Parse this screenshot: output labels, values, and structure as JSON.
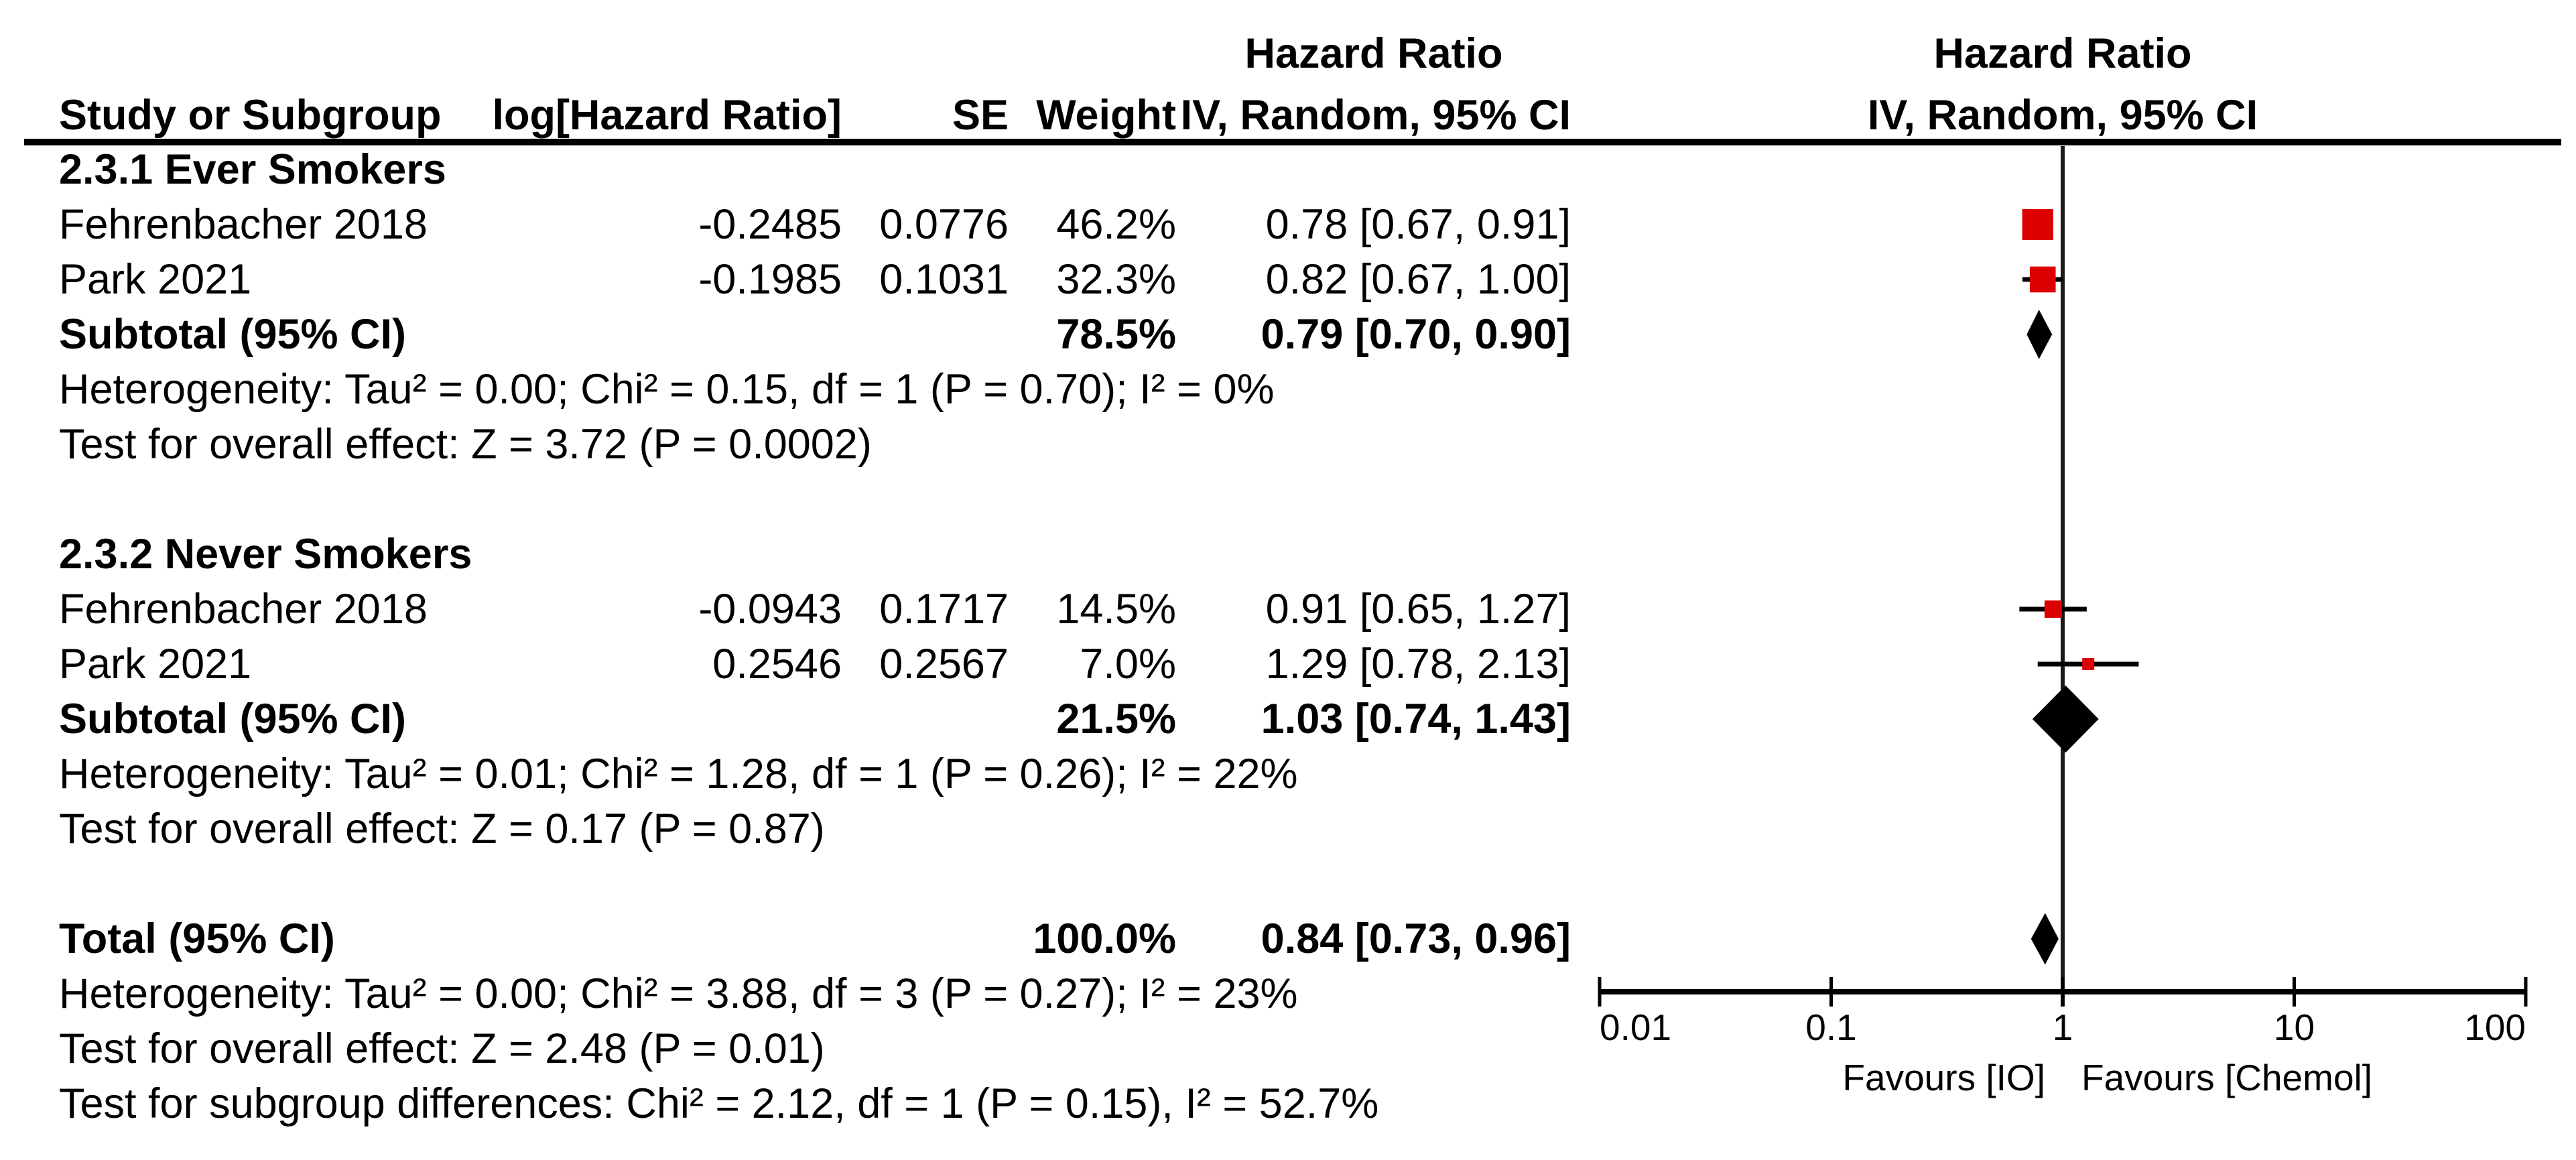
{
  "colors": {
    "marker_red": "#DD0000",
    "ink": "#000000",
    "line": "#1a1a1a"
  },
  "table": {
    "col_headers": {
      "study": "Study or Subgroup",
      "log_hr": "log[Hazard Ratio]",
      "se": "SE",
      "weight": "Weight",
      "effect_line1": "Hazard Ratio",
      "effect_line2": "IV, Random, 95% CI"
    },
    "plot_headers": {
      "line1": "Hazard Ratio",
      "line2": "IV, Random, 95% CI"
    }
  },
  "chart_data": {
    "type": "scatter",
    "subtype": "forest-plot",
    "title": "Hazard Ratio, IV, Random, 95% CI",
    "x_scale": "log10",
    "xlim": [
      0.01,
      100
    ],
    "x_ticks": [
      0.01,
      0.1,
      1,
      10,
      100
    ],
    "x_tick_labels": [
      "0.01",
      "0.1",
      "1",
      "10",
      "100"
    ],
    "null_line": 1,
    "favours_left": "Favours [IO]",
    "favours_right": "Favours [Chemol]",
    "rows": [
      {
        "kind": "subgroup",
        "label": "2.3.1 Ever Smokers"
      },
      {
        "kind": "study",
        "label": "Fehrenbacher 2018",
        "log_hr": "-0.2485",
        "se": "0.0776",
        "weight": "46.2%",
        "weight_pct": 46.2,
        "ci_text": "0.78 [0.67, 0.91]",
        "hr": 0.78,
        "lo": 0.67,
        "hi": 0.91
      },
      {
        "kind": "study",
        "label": "Park 2021",
        "log_hr": "-0.1985",
        "se": "0.1031",
        "weight": "32.3%",
        "weight_pct": 32.3,
        "ci_text": "0.82 [0.67, 1.00]",
        "hr": 0.82,
        "lo": 0.67,
        "hi": 1.0
      },
      {
        "kind": "subtotal",
        "label": "Subtotal (95% CI)",
        "weight": "78.5%",
        "ci_text": "0.79 [0.70, 0.90]",
        "hr": 0.79,
        "lo": 0.7,
        "hi": 0.9
      },
      {
        "kind": "note",
        "label": "Heterogeneity: Tau² = 0.00; Chi² = 0.15, df = 1 (P = 0.70); I² = 0%"
      },
      {
        "kind": "note",
        "label": "Test for overall effect: Z = 3.72 (P = 0.0002)"
      },
      {
        "kind": "blank"
      },
      {
        "kind": "subgroup",
        "label": "2.3.2 Never Smokers"
      },
      {
        "kind": "study",
        "label": "Fehrenbacher 2018",
        "log_hr": "-0.0943",
        "se": "0.1717",
        "weight": "14.5%",
        "weight_pct": 14.5,
        "ci_text": "0.91 [0.65, 1.27]",
        "hr": 0.91,
        "lo": 0.65,
        "hi": 1.27
      },
      {
        "kind": "study",
        "label": "Park 2021",
        "log_hr": "0.2546",
        "se": "0.2567",
        "weight": "7.0%",
        "weight_pct": 7.0,
        "ci_text": "1.29 [0.78, 2.13]",
        "hr": 1.29,
        "lo": 0.78,
        "hi": 2.13
      },
      {
        "kind": "subtotal",
        "label": "Subtotal (95% CI)",
        "weight": "21.5%",
        "ci_text": "1.03 [0.74, 1.43]",
        "hr": 1.03,
        "lo": 0.74,
        "hi": 1.43
      },
      {
        "kind": "note",
        "label": "Heterogeneity: Tau² = 0.01; Chi² = 1.28, df = 1 (P = 0.26); I² = 22%"
      },
      {
        "kind": "note",
        "label": "Test for overall effect: Z = 0.17 (P = 0.87)"
      },
      {
        "kind": "blank"
      },
      {
        "kind": "total",
        "label": "Total (95% CI)",
        "weight": "100.0%",
        "ci_text": "0.84 [0.73, 0.96]",
        "hr": 0.84,
        "lo": 0.73,
        "hi": 0.96
      },
      {
        "kind": "note",
        "label": "Heterogeneity: Tau² = 0.00; Chi² = 3.88, df = 3 (P = 0.27); I² = 23%"
      },
      {
        "kind": "note",
        "label": "Test for overall effect: Z = 2.48 (P = 0.01)"
      },
      {
        "kind": "note",
        "label": "Test for subgroup differences: Chi² = 2.12, df = 1 (P = 0.15), I² = 52.7%"
      }
    ]
  }
}
